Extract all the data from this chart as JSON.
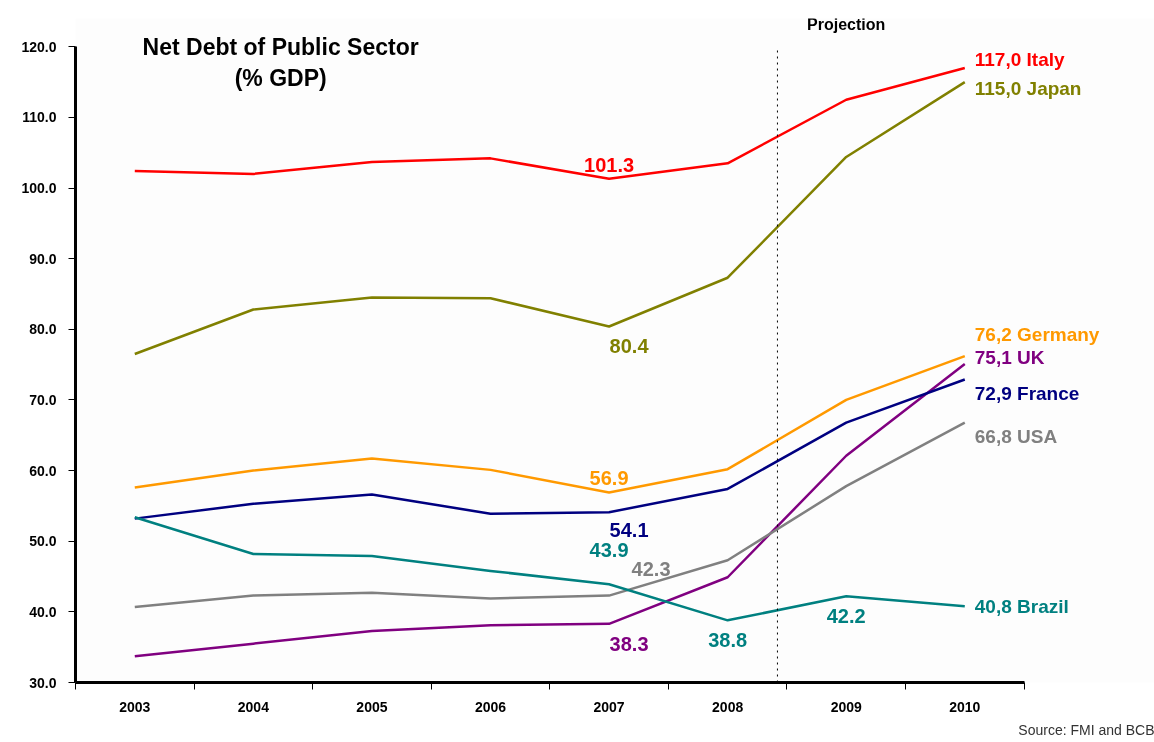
{
  "chart_data": {
    "type": "line",
    "title": "Net Debt of Public Sector",
    "subtitle": "(% GDP)",
    "x": [
      2003,
      2004,
      2005,
      2006,
      2007,
      2008,
      2009,
      2010
    ],
    "xlim": [
      2002.5,
      2010.5
    ],
    "xticks": [
      2003,
      2004,
      2005,
      2006,
      2007,
      2008,
      2009,
      2010
    ],
    "ylim": [
      30,
      120
    ],
    "yticks": [
      {
        "value": 30,
        "label": "30.0"
      },
      {
        "value": 40,
        "label": "40.0"
      },
      {
        "value": 50,
        "label": "50.0"
      },
      {
        "value": 60,
        "label": "60.0"
      },
      {
        "value": 70,
        "label": "70.0"
      },
      {
        "value": 80,
        "label": "80.0"
      },
      {
        "value": 90,
        "label": "90.0"
      },
      {
        "value": 100,
        "label": "100.0"
      },
      {
        "value": 110,
        "label": "110.0"
      },
      {
        "value": 120,
        "label": "120.0"
      }
    ],
    "grid": false,
    "legend": false,
    "marker": "none",
    "line_style": "solid",
    "ref_lines": [
      {
        "axis": "x",
        "value": 2008.42,
        "label": "Projection",
        "color": "#000000",
        "line_style": "dotted"
      }
    ],
    "annotations": [
      "Source: FMI and BCB"
    ],
    "series": [
      {
        "name": "Italy",
        "color": "#ff0000",
        "values": [
          102.4,
          102.0,
          103.7,
          104.2,
          101.3,
          103.5,
          112.5,
          117.0
        ],
        "value_labels": [
          null,
          null,
          null,
          null,
          "101.3",
          null,
          null,
          "117,0"
        ]
      },
      {
        "name": "Japan",
        "color": "#808000",
        "values": [
          76.5,
          82.8,
          84.5,
          84.4,
          80.4,
          87.3,
          104.4,
          115.0
        ],
        "value_labels": [
          null,
          null,
          null,
          null,
          "80.4",
          null,
          null,
          "115,0"
        ]
      },
      {
        "name": "Germany",
        "color": "#ff9900",
        "values": [
          57.6,
          60.0,
          61.7,
          60.1,
          56.9,
          60.2,
          70.0,
          76.2
        ],
        "value_labels": [
          null,
          null,
          null,
          null,
          "56.9",
          null,
          null,
          "76,2"
        ]
      },
      {
        "name": "UK",
        "color": "#800080",
        "values": [
          33.7,
          35.5,
          37.3,
          38.1,
          38.3,
          44.9,
          62.1,
          75.1
        ],
        "value_labels": [
          null,
          null,
          null,
          null,
          "38.3",
          null,
          null,
          "75,1"
        ]
      },
      {
        "name": "France",
        "color": "#000080",
        "values": [
          53.2,
          55.3,
          56.6,
          53.9,
          54.1,
          57.4,
          66.8,
          72.9
        ],
        "value_labels": [
          null,
          null,
          null,
          null,
          "54.1",
          null,
          null,
          "72,9"
        ]
      },
      {
        "name": "USA",
        "color": "#808080",
        "values": [
          40.7,
          42.3,
          42.7,
          41.9,
          42.3,
          47.3,
          57.8,
          66.8
        ],
        "value_labels": [
          null,
          null,
          null,
          null,
          "42.3",
          null,
          null,
          "66,8"
        ]
      },
      {
        "name": "Brazil",
        "color": "#008080",
        "values": [
          53.4,
          48.2,
          47.9,
          45.8,
          43.9,
          38.8,
          42.2,
          40.8
        ],
        "value_labels": [
          null,
          null,
          null,
          null,
          "43.9",
          "38.8",
          "42.2",
          "40,8"
        ]
      }
    ]
  }
}
